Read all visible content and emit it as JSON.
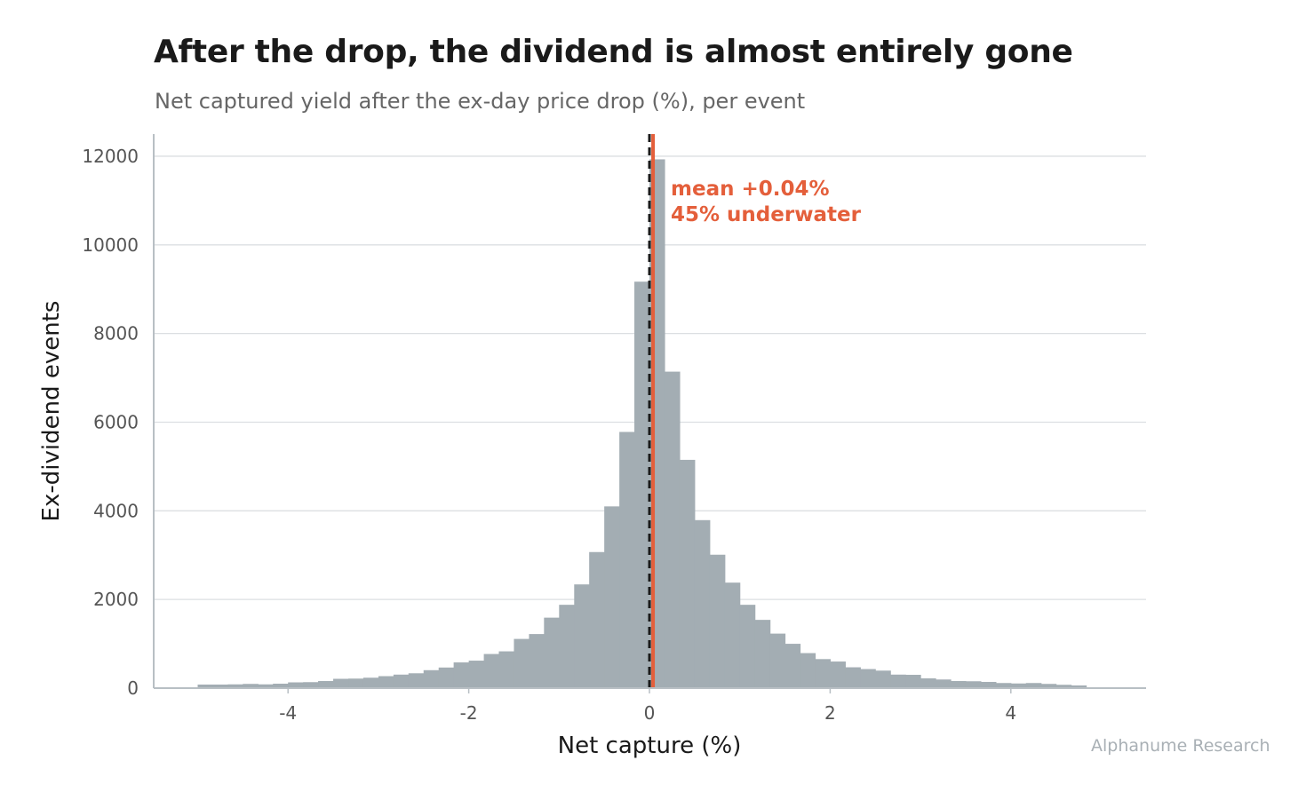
{
  "title": "After the drop, the dividend is almost entirely gone",
  "subtitle": "Net captured yield after the ex-day price drop (%), per event",
  "source": "Alphanume Research",
  "colors": {
    "bars": "#a3adb3",
    "mean_line": "#e45f3b",
    "zero_line": "#1a1a1a",
    "grid": "#dcdfe2",
    "axis": "#b8bfc4"
  },
  "chart_data": {
    "type": "bar",
    "subtype": "histogram",
    "xlabel": "Net capture (%)",
    "ylabel": "Ex-dividend events",
    "xlim": [
      -5.5,
      5.5
    ],
    "ylim": [
      0,
      12500
    ],
    "x_ticks": [
      -4,
      -2,
      0,
      2,
      4
    ],
    "x_tick_labels": [
      "-4",
      "-2",
      "0",
      "2",
      "4"
    ],
    "y_ticks": [
      0,
      2000,
      4000,
      6000,
      8000,
      10000,
      12000
    ],
    "y_tick_labels": [
      "0",
      "2000",
      "4000",
      "6000",
      "8000",
      "10000",
      "12000"
    ],
    "grid": "horizontal",
    "bin_width": 0.1667,
    "bins": [
      {
        "x0": -5.0,
        "value": 80
      },
      {
        "x0": -4.833,
        "value": 80
      },
      {
        "x0": -4.667,
        "value": 85
      },
      {
        "x0": -4.5,
        "value": 95
      },
      {
        "x0": -4.333,
        "value": 85
      },
      {
        "x0": -4.167,
        "value": 100
      },
      {
        "x0": -4.0,
        "value": 130
      },
      {
        "x0": -3.833,
        "value": 135
      },
      {
        "x0": -3.667,
        "value": 160
      },
      {
        "x0": -3.5,
        "value": 210
      },
      {
        "x0": -3.333,
        "value": 215
      },
      {
        "x0": -3.167,
        "value": 235
      },
      {
        "x0": -3.0,
        "value": 270
      },
      {
        "x0": -2.833,
        "value": 305
      },
      {
        "x0": -2.667,
        "value": 335
      },
      {
        "x0": -2.5,
        "value": 405
      },
      {
        "x0": -2.333,
        "value": 465
      },
      {
        "x0": -2.167,
        "value": 580
      },
      {
        "x0": -2.0,
        "value": 620
      },
      {
        "x0": -1.833,
        "value": 770
      },
      {
        "x0": -1.667,
        "value": 830
      },
      {
        "x0": -1.5,
        "value": 1110
      },
      {
        "x0": -1.333,
        "value": 1220
      },
      {
        "x0": -1.167,
        "value": 1590
      },
      {
        "x0": -1.0,
        "value": 1880
      },
      {
        "x0": -0.833,
        "value": 2340
      },
      {
        "x0": -0.667,
        "value": 3070
      },
      {
        "x0": -0.5,
        "value": 4100
      },
      {
        "x0": -0.333,
        "value": 5780
      },
      {
        "x0": -0.167,
        "value": 9170
      },
      {
        "x0": 0.0,
        "value": 11930
      },
      {
        "x0": 0.167,
        "value": 7140
      },
      {
        "x0": 0.333,
        "value": 5150
      },
      {
        "x0": 0.5,
        "value": 3790
      },
      {
        "x0": 0.667,
        "value": 3010
      },
      {
        "x0": 0.833,
        "value": 2380
      },
      {
        "x0": 1.0,
        "value": 1880
      },
      {
        "x0": 1.167,
        "value": 1540
      },
      {
        "x0": 1.333,
        "value": 1230
      },
      {
        "x0": 1.5,
        "value": 1000
      },
      {
        "x0": 1.667,
        "value": 790
      },
      {
        "x0": 1.833,
        "value": 655
      },
      {
        "x0": 2.0,
        "value": 600
      },
      {
        "x0": 2.167,
        "value": 470
      },
      {
        "x0": 2.333,
        "value": 430
      },
      {
        "x0": 2.5,
        "value": 395
      },
      {
        "x0": 2.667,
        "value": 305
      },
      {
        "x0": 2.833,
        "value": 300
      },
      {
        "x0": 3.0,
        "value": 220
      },
      {
        "x0": 3.167,
        "value": 195
      },
      {
        "x0": 3.333,
        "value": 160
      },
      {
        "x0": 3.5,
        "value": 155
      },
      {
        "x0": 3.667,
        "value": 140
      },
      {
        "x0": 3.833,
        "value": 115
      },
      {
        "x0": 4.0,
        "value": 105
      },
      {
        "x0": 4.167,
        "value": 115
      },
      {
        "x0": 4.333,
        "value": 95
      },
      {
        "x0": 4.5,
        "value": 75
      },
      {
        "x0": 4.667,
        "value": 60
      }
    ],
    "reference_lines": [
      {
        "x": 0,
        "style": "dashed",
        "color": "#1a1a1a"
      },
      {
        "x": 0.04,
        "style": "solid",
        "color": "#e45f3b"
      }
    ],
    "annotations": [
      "mean +0.04%",
      "45% underwater"
    ]
  }
}
